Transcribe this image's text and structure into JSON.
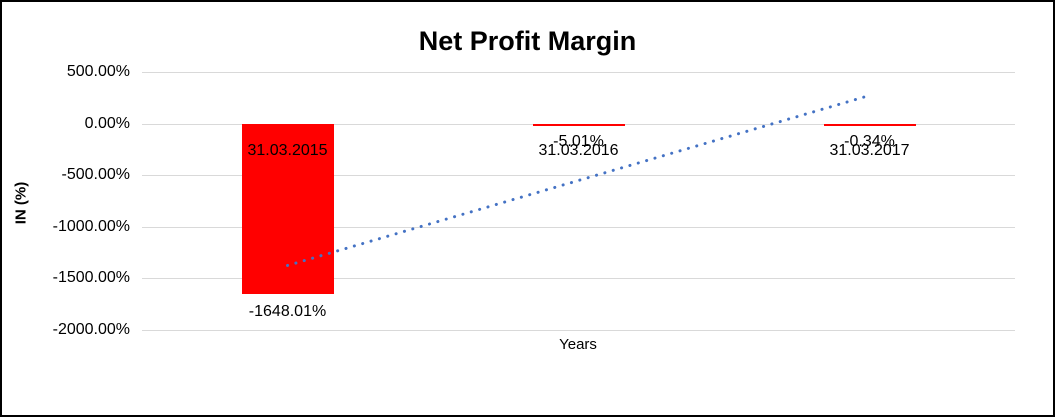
{
  "chart_data": {
    "type": "bar",
    "title": "Net Profit Margin",
    "xlabel": "Years",
    "ylabel": "IN (%)",
    "categories": [
      "31.03.2015",
      "31.03.2016",
      "31.03.2017"
    ],
    "values": [
      -1648.01,
      -5.01,
      -0.34
    ],
    "data_labels": [
      "-1648.01%",
      "-5.01%",
      "-0.34%"
    ],
    "ylim": [
      -2000,
      500
    ],
    "y_tick_step": 500,
    "y_tick_labels": [
      "500.00%",
      "0.00%",
      "-500.00%",
      "-1000.00%",
      "-1500.00%",
      "-2000.00%"
    ],
    "grid": true,
    "legend": false,
    "colors": {
      "bar": "#ff0000",
      "trendline": "#4472c4",
      "gridline": "#d9d9d9",
      "text": "#000000",
      "background": "#ffffff",
      "frame_border": "#000000"
    },
    "trendline": {
      "type": "linear",
      "style": "dotted",
      "endpoints_pct": [
        -1374.96,
        272.72
      ]
    }
  }
}
